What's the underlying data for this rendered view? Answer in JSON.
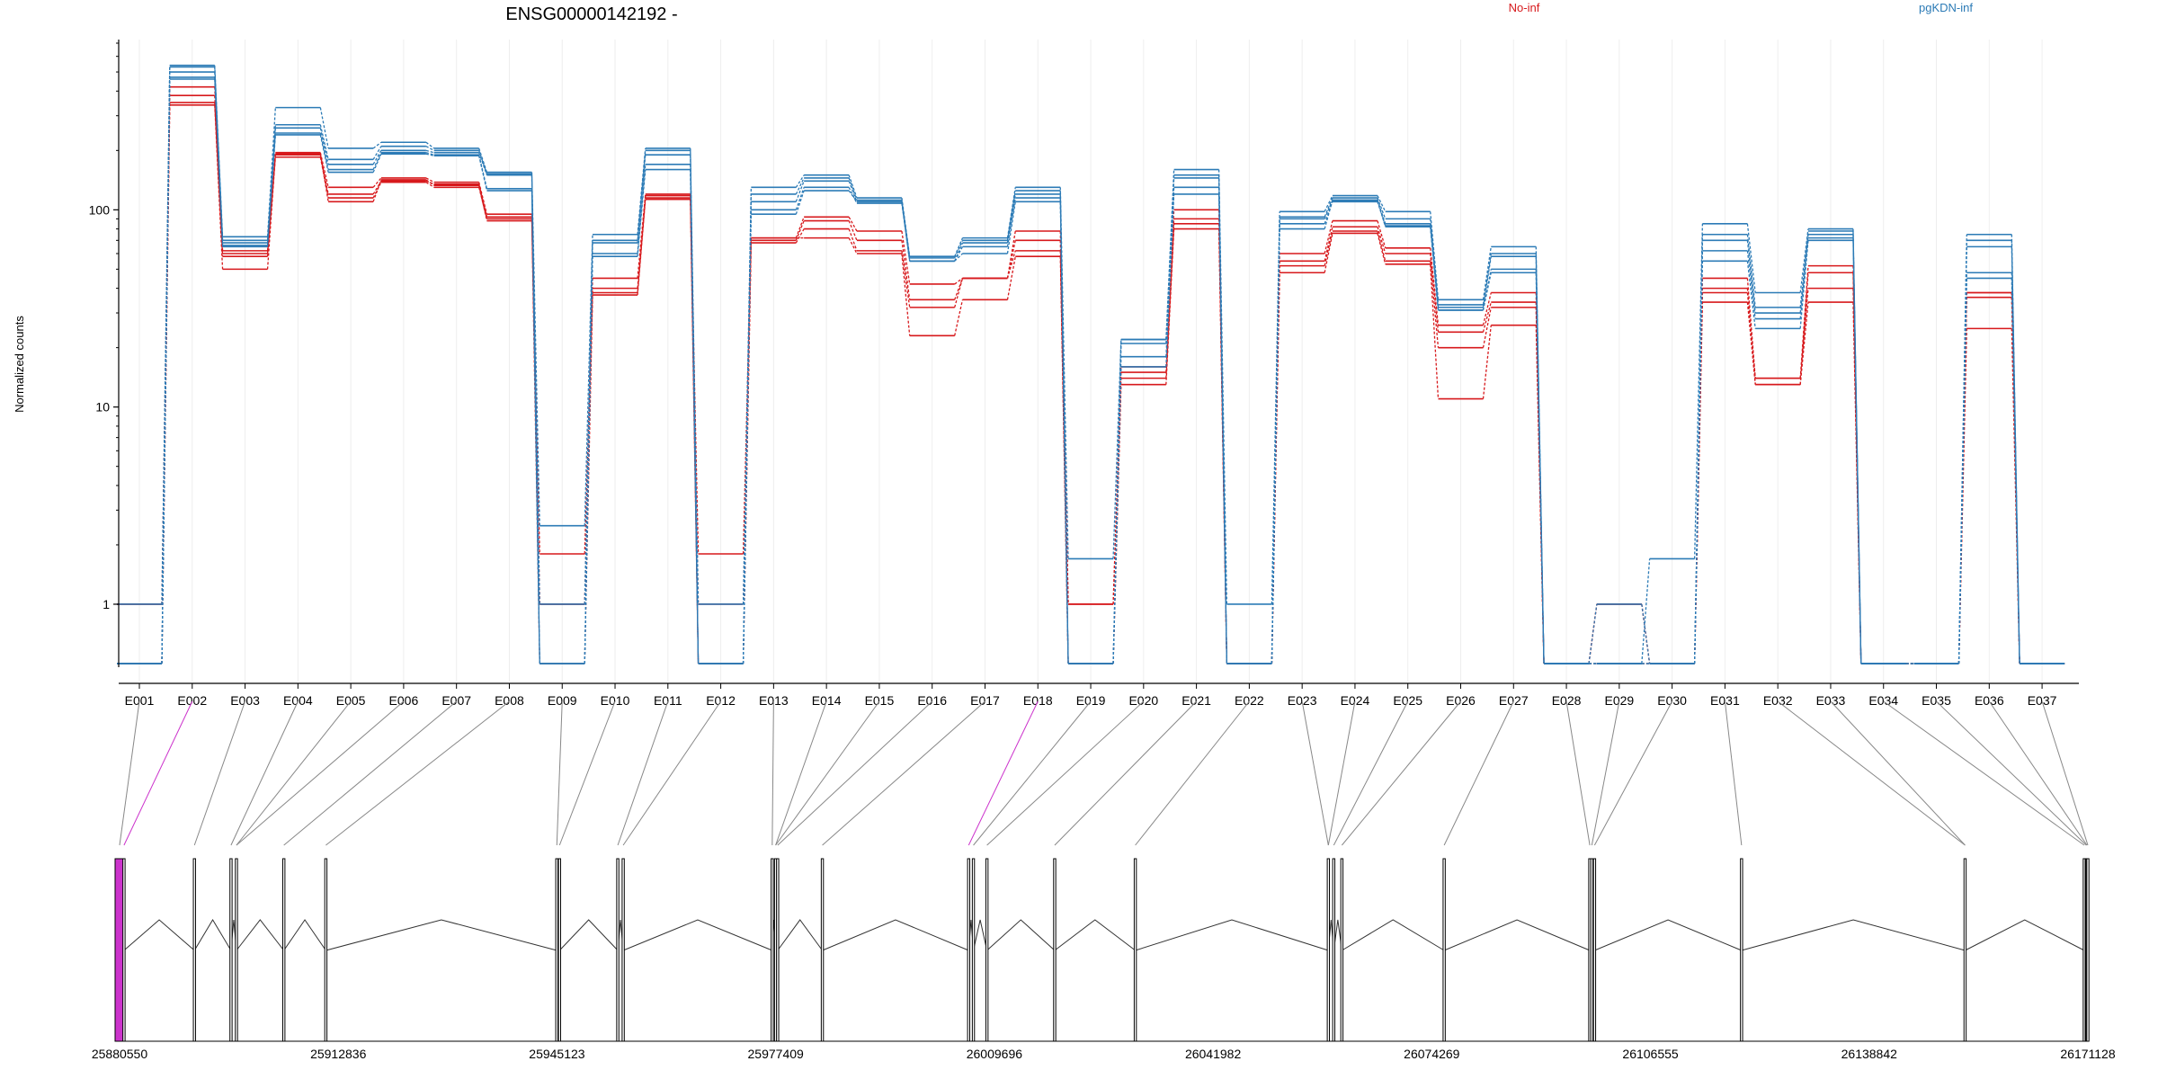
{
  "chart_data": {
    "type": "line",
    "title": "ENSG00000142192 -",
    "ylabel": "Normalized counts",
    "xlabel": "",
    "yscale": "log",
    "ylim": [
      0.5,
      700
    ],
    "y_ticks": [
      {
        "value": 1,
        "label": "1"
      },
      {
        "value": 10,
        "label": "10"
      },
      {
        "value": 100,
        "label": "100"
      }
    ],
    "grid": "vertical",
    "legend": [
      {
        "name": "No-inf",
        "color": "#d7191c",
        "placement": "top-center"
      },
      {
        "name": "pgKDN-inf",
        "color": "#2c7bb6",
        "placement": "top-right"
      }
    ],
    "categories": [
      "E001",
      "E002",
      "E003",
      "E004",
      "E005",
      "E006",
      "E007",
      "E008",
      "E009",
      "E010",
      "E011",
      "E012",
      "E013",
      "E014",
      "E015",
      "E016",
      "E017",
      "E018",
      "E019",
      "E020",
      "E021",
      "E022",
      "E023",
      "E024",
      "E025",
      "E026",
      "E027",
      "E028",
      "E029",
      "E030",
      "E031",
      "E032",
      "E033",
      "E034",
      "E035",
      "E036",
      "E037"
    ],
    "series": [
      {
        "group": "No-inf",
        "color": "#d7191c",
        "values": [
          1.0,
          420,
          62,
          195,
          130,
          145,
          138,
          95,
          1.0,
          45,
          120,
          1.8,
          72,
          92,
          78,
          42,
          45,
          78,
          1.0,
          16,
          100,
          0.5,
          60,
          88,
          64,
          26,
          38,
          0.5,
          1.0,
          0.5,
          45,
          14,
          52,
          0.5,
          0.5,
          38,
          0.5
        ]
      },
      {
        "group": "No-inf",
        "color": "#d7191c",
        "values": [
          1.0,
          380,
          60,
          190,
          120,
          140,
          135,
          92,
          1.8,
          40,
          118,
          1.0,
          70,
          88,
          70,
          35,
          45,
          70,
          1.0,
          15,
          90,
          0.5,
          55,
          82,
          60,
          24,
          34,
          0.5,
          1.0,
          0.5,
          40,
          13,
          48,
          0.5,
          0.5,
          38,
          0.5
        ]
      },
      {
        "group": "No-inf",
        "color": "#d7191c",
        "values": [
          0.5,
          350,
          58,
          185,
          115,
          138,
          130,
          90,
          1.0,
          38,
          115,
          0.5,
          68,
          80,
          62,
          32,
          45,
          62,
          0.5,
          14,
          85,
          0.5,
          52,
          78,
          55,
          20,
          32,
          0.5,
          0.5,
          0.5,
          38,
          14,
          40,
          0.5,
          0.5,
          36,
          0.5
        ]
      },
      {
        "group": "No-inf",
        "color": "#d7191c",
        "values": [
          0.5,
          340,
          50,
          192,
          110,
          142,
          133,
          88,
          0.5,
          37,
          113,
          0.5,
          72,
          72,
          60,
          23,
          35,
          58,
          0.5,
          13,
          80,
          0.5,
          48,
          76,
          53,
          11,
          26,
          0.5,
          0.5,
          0.5,
          34,
          13,
          34,
          0.5,
          0.5,
          25,
          0.5
        ]
      },
      {
        "group": "pgKDN-inf",
        "color": "#2c7bb6",
        "values": [
          0.5,
          540,
          73,
          330,
          205,
          220,
          205,
          155,
          2.5,
          75,
          205,
          0.5,
          130,
          150,
          115,
          58,
          72,
          130,
          1.7,
          22,
          160,
          1.0,
          98,
          118,
          98,
          35,
          65,
          0.5,
          0.5,
          1.7,
          85,
          38,
          80,
          0.5,
          0.5,
          75,
          0.5
        ]
      },
      {
        "group": "pgKDN-inf",
        "color": "#2c7bb6",
        "values": [
          1.0,
          530,
          70,
          270,
          180,
          210,
          200,
          152,
          1.0,
          70,
          200,
          1.0,
          120,
          145,
          112,
          57,
          70,
          125,
          0.5,
          22,
          150,
          0.5,
          92,
          115,
          90,
          33,
          60,
          0.5,
          1.0,
          0.5,
          75,
          32,
          78,
          0.5,
          0.5,
          70,
          0.5
        ]
      },
      {
        "group": "pgKDN-inf",
        "color": "#2c7bb6",
        "values": [
          0.5,
          500,
          68,
          260,
          170,
          200,
          195,
          150,
          0.5,
          68,
          190,
          0.5,
          110,
          140,
          110,
          55,
          68,
          120,
          0.5,
          21,
          145,
          0.5,
          90,
          112,
          85,
          32,
          58,
          0.5,
          0.5,
          0.5,
          70,
          30,
          75,
          0.5,
          0.5,
          65,
          0.5
        ]
      },
      {
        "group": "pgKDN-inf",
        "color": "#2c7bb6",
        "values": [
          0.5,
          470,
          66,
          245,
          160,
          195,
          190,
          128,
          0.5,
          60,
          170,
          0.5,
          100,
          130,
          108,
          55,
          65,
          115,
          0.5,
          18,
          130,
          0.5,
          85,
          110,
          83,
          31,
          50,
          0.5,
          0.5,
          0.5,
          62,
          28,
          72,
          0.5,
          0.5,
          48,
          0.5
        ]
      },
      {
        "group": "pgKDN-inf",
        "color": "#2c7bb6",
        "values": [
          0.5,
          460,
          65,
          240,
          155,
          192,
          188,
          125,
          0.5,
          58,
          160,
          0.5,
          95,
          125,
          110,
          55,
          60,
          110,
          0.5,
          16,
          120,
          0.5,
          80,
          112,
          82,
          31,
          48,
          0.5,
          0.5,
          0.5,
          55,
          25,
          70,
          0.5,
          0.5,
          45,
          0.5
        ]
      }
    ],
    "genomic_axis": {
      "ticks": [
        "25880550",
        "25912836",
        "25945123",
        "25977409",
        "26009696",
        "26041982",
        "26074269",
        "26106555",
        "26138842",
        "26171128"
      ],
      "exon_positions": [
        25880550,
        25881200,
        25891600,
        25897000,
        25897800,
        25904800,
        25911000,
        25945100,
        25945500,
        25954100,
        25954900,
        25976900,
        25977400,
        25977700,
        25984300,
        26005900,
        26006600,
        26008600,
        26018600,
        26030500,
        26059000,
        26059800,
        26061000,
        26076100,
        26097600,
        26097900,
        26098300,
        26120000,
        26153000,
        26170600,
        26170900,
        26171000,
        26171128
      ],
      "highlighted_exons": [
        "E002",
        "E018"
      ],
      "highlight_color": "#cc33cc"
    }
  }
}
